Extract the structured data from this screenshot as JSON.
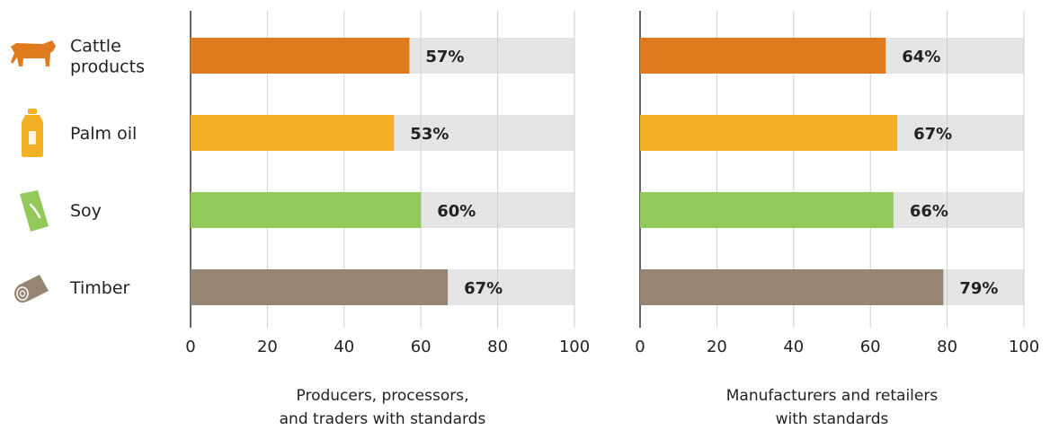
{
  "chart_data": {
    "type": "bar",
    "orientation": "horizontal",
    "categories": [
      "Cattle products",
      "Palm oil",
      "Soy",
      "Timber"
    ],
    "category_label_lines": [
      [
        "Cattle",
        "products"
      ],
      [
        "Palm oil"
      ],
      [
        "Soy"
      ],
      [
        "Timber"
      ]
    ],
    "category_icons": [
      "cow-icon",
      "palm-oil-bottle-icon",
      "soy-package-icon",
      "timber-log-icon"
    ],
    "category_colors": [
      "#E07A1F",
      "#F2B124",
      "#92C95B",
      "#958572"
    ],
    "background_bar_color": "#E5E5E5",
    "xlim": [
      0,
      100
    ],
    "x_ticks": [
      "0",
      "20",
      "40",
      "60",
      "80",
      "100"
    ],
    "grid": true,
    "panels": [
      {
        "xlabel_lines": [
          "Producers, processors,",
          "and traders with standards"
        ],
        "values": [
          57,
          53,
          60,
          67
        ],
        "value_labels": [
          "57%",
          "53%",
          "60%",
          "67%"
        ]
      },
      {
        "xlabel_lines": [
          "Manufacturers and retailers",
          "with standards"
        ],
        "values": [
          64,
          67,
          66,
          79
        ],
        "value_labels": [
          "64%",
          "67%",
          "66%",
          "79%"
        ]
      }
    ]
  }
}
